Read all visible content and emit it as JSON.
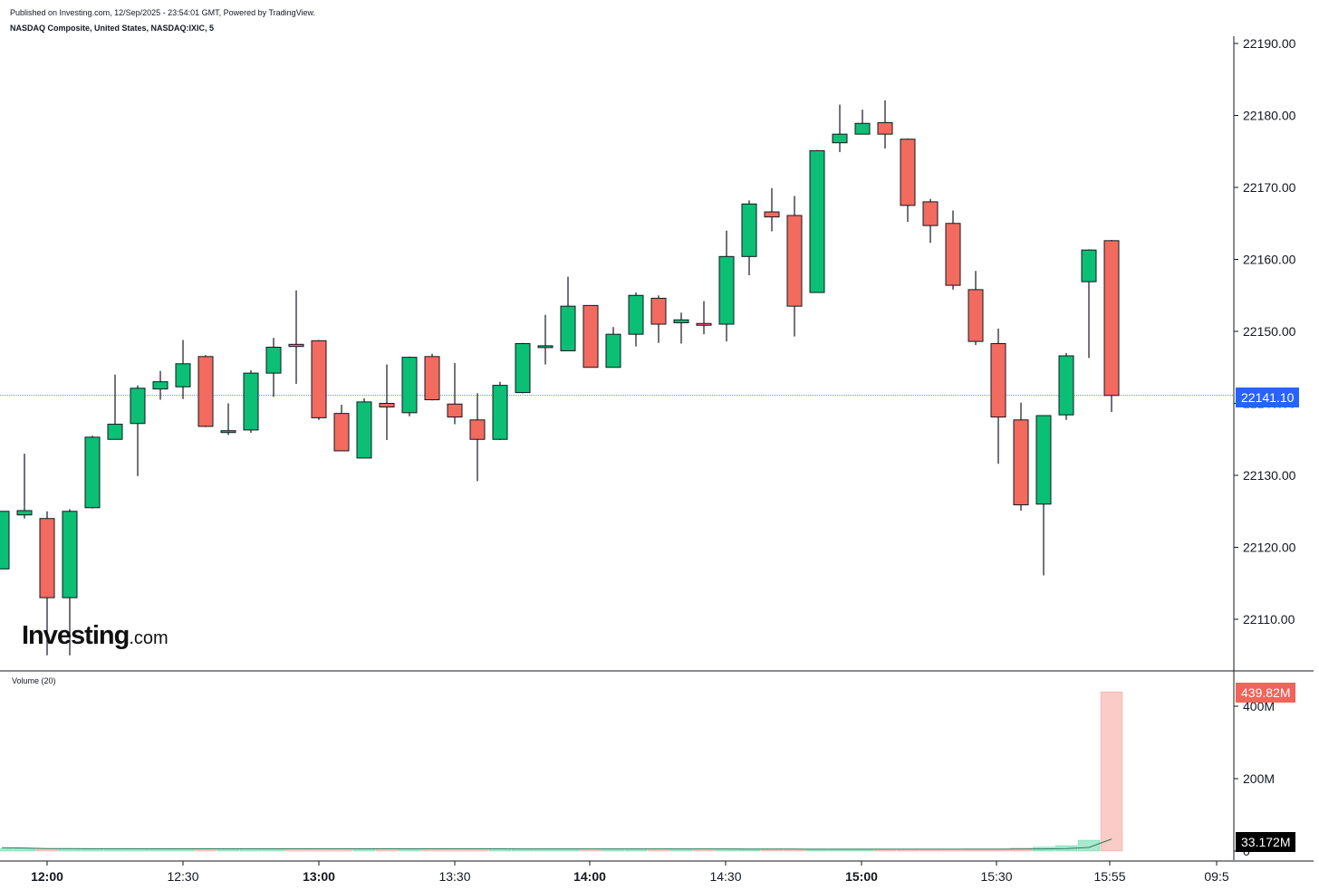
{
  "header": {
    "published": "Published on Investing.com, 12/Sep/2025 - 23:54:01 GMT, Powered by TradingView.",
    "symbol": "NASDAQ Composite, United States, NASDAQ:IXIC, 5"
  },
  "logo": {
    "main": "Investing",
    "suffix": ".com"
  },
  "volume_label": "Volume (20)",
  "badges": {
    "last_price": "22141.10",
    "last_volume": "439.82M",
    "volume_ma": "33.172M"
  },
  "colors": {
    "up": "#089981",
    "up_fill": "#0bbf75",
    "down_fill": "#f26b5e",
    "line": "#2962ff"
  },
  "chart_data": {
    "type": "candlestick",
    "interval": "5",
    "price_axis": {
      "ticks": [
        22110,
        22120,
        22130,
        22140,
        22150,
        22160,
        22170,
        22180,
        22190
      ],
      "labels": [
        "22110.00",
        "22120.00",
        "22130.00",
        "22140.00",
        "22150.00",
        "22160.00",
        "22170.00",
        "22180.00",
        "22190.00"
      ],
      "range": [
        22102,
        22191
      ]
    },
    "volume_axis": {
      "ticks": [
        0,
        200000000,
        400000000
      ],
      "labels": [
        "0",
        "200M",
        "400M"
      ],
      "range": [
        0,
        470000000
      ]
    },
    "time_axis": {
      "ticks": [
        "12:00",
        "12:30",
        "13:00",
        "13:30",
        "14:00",
        "14:30",
        "15:00",
        "15:30",
        "15:55",
        "09:5"
      ],
      "bold": [
        "12:00",
        "13:00",
        "14:00",
        "15:00"
      ]
    },
    "last_price": 22141.1,
    "candles": [
      {
        "t": "11:55",
        "o": 22117,
        "h": 22125,
        "l": 22117,
        "c": 22125
      },
      {
        "t": "12:00",
        "o": 22124.5,
        "h": 22133,
        "l": 22124,
        "c": 22125.1
      },
      {
        "t": "12:05",
        "o": 22124,
        "h": 22125,
        "l": 22105,
        "c": 22113
      },
      {
        "t": "12:10",
        "o": 22113,
        "h": 22125.3,
        "l": 22105,
        "c": 22125
      },
      {
        "t": "12:15",
        "o": 22125.5,
        "h": 22135.5,
        "l": 22125.4,
        "c": 22135.3
      },
      {
        "t": "12:20",
        "o": 22135,
        "h": 22144,
        "l": 22135,
        "c": 22137.1
      },
      {
        "t": "12:25",
        "o": 22137.2,
        "h": 22142.5,
        "l": 22129.9,
        "c": 22142.1
      },
      {
        "t": "12:30",
        "o": 22142,
        "h": 22144.5,
        "l": 22140.5,
        "c": 22143
      },
      {
        "t": "12:35",
        "o": 22142.3,
        "h": 22148.8,
        "l": 22140.6,
        "c": 22145.5
      },
      {
        "t": "12:40",
        "o": 22146.5,
        "h": 22146.7,
        "l": 22136.7,
        "c": 22136.8
      },
      {
        "t": "12:45",
        "o": 22136.1,
        "h": 22140,
        "l": 22135.6,
        "c": 22136.2
      },
      {
        "t": "12:50",
        "o": 22136.3,
        "h": 22144.6,
        "l": 22135.9,
        "c": 22144.2
      },
      {
        "t": "12:55",
        "o": 22144.2,
        "h": 22149.1,
        "l": 22140.9,
        "c": 22147.8
      },
      {
        "t": "13:00",
        "o": 22148.2,
        "h": 22155.7,
        "l": 22142.7,
        "c": 22147.9
      },
      {
        "t": "13:05",
        "o": 22148.7,
        "h": 22148.8,
        "l": 22137.7,
        "c": 22138
      },
      {
        "t": "13:10",
        "o": 22138.6,
        "h": 22139.8,
        "l": 22133.5,
        "c": 22133.4
      },
      {
        "t": "13:15",
        "o": 22132.4,
        "h": 22140.7,
        "l": 22132.4,
        "c": 22140.2
      },
      {
        "t": "13:20",
        "o": 22140,
        "h": 22145.4,
        "l": 22134.9,
        "c": 22139.5
      },
      {
        "t": "13:25",
        "o": 22138.7,
        "h": 22146.5,
        "l": 22138.2,
        "c": 22146.4
      },
      {
        "t": "13:30",
        "o": 22146.5,
        "h": 22146.9,
        "l": 22140.4,
        "c": 22140.5
      },
      {
        "t": "13:35",
        "o": 22139.9,
        "h": 22145.6,
        "l": 22137.1,
        "c": 22138.1
      },
      {
        "t": "13:40",
        "o": 22137.7,
        "h": 22141.4,
        "l": 22129.2,
        "c": 22135
      },
      {
        "t": "13:45",
        "o": 22135,
        "h": 22143,
        "l": 22134.9,
        "c": 22142.5
      },
      {
        "t": "13:50",
        "o": 22141.5,
        "h": 22148.4,
        "l": 22141.4,
        "c": 22148.3
      },
      {
        "t": "13:55",
        "o": 22148,
        "h": 22152.3,
        "l": 22145.4,
        "c": 22148
      },
      {
        "t": "14:00",
        "o": 22147.3,
        "h": 22157.6,
        "l": 22147.3,
        "c": 22153.5
      },
      {
        "t": "14:05",
        "o": 22153.6,
        "h": 22153.6,
        "l": 22145,
        "c": 22145
      },
      {
        "t": "14:10",
        "o": 22145,
        "h": 22150.6,
        "l": 22145,
        "c": 22149.6
      },
      {
        "t": "14:15",
        "o": 22149.6,
        "h": 22155.4,
        "l": 22147.9,
        "c": 22155
      },
      {
        "t": "14:20",
        "o": 22154.6,
        "h": 22155,
        "l": 22148.4,
        "c": 22151
      },
      {
        "t": "14:25",
        "o": 22151.2,
        "h": 22152.6,
        "l": 22148.3,
        "c": 22151.6
      },
      {
        "t": "14:30",
        "o": 22151.1,
        "h": 22154.2,
        "l": 22149.6,
        "c": 22150.9
      },
      {
        "t": "14:35",
        "o": 22151,
        "h": 22164,
        "l": 22148.6,
        "c": 22160.4
      },
      {
        "t": "14:40",
        "o": 22160.4,
        "h": 22168.2,
        "l": 22157.8,
        "c": 22167.7
      },
      {
        "t": "14:45",
        "o": 22166.6,
        "h": 22169.9,
        "l": 22163.9,
        "c": 22165.9
      },
      {
        "t": "14:50",
        "o": 22166.1,
        "h": 22168.8,
        "l": 22149.3,
        "c": 22153.5
      },
      {
        "t": "14:55",
        "o": 22155.4,
        "h": 22175.2,
        "l": 22155.4,
        "c": 22175.1
      },
      {
        "t": "15:00",
        "o": 22176.2,
        "h": 22181.5,
        "l": 22174.9,
        "c": 22177.4
      },
      {
        "t": "15:05",
        "o": 22177.4,
        "h": 22180.8,
        "l": 22177.4,
        "c": 22178.9
      },
      {
        "t": "15:10",
        "o": 22179,
        "h": 22182.1,
        "l": 22175.4,
        "c": 22177.4
      },
      {
        "t": "15:15",
        "o": 22176.7,
        "h": 22176.8,
        "l": 22165.2,
        "c": 22167.5
      },
      {
        "t": "15:20",
        "o": 22168,
        "h": 22168.4,
        "l": 22162.3,
        "c": 22164.7
      },
      {
        "t": "15:25",
        "o": 22165,
        "h": 22166.8,
        "l": 22155.8,
        "c": 22156.4
      },
      {
        "t": "15:30",
        "o": 22155.8,
        "h": 22158.4,
        "l": 22148.1,
        "c": 22148.6
      },
      {
        "t": "15:35",
        "o": 22148.3,
        "h": 22150.4,
        "l": 22131.6,
        "c": 22138.1
      },
      {
        "t": "15:40",
        "o": 22137.7,
        "h": 22140.1,
        "l": 22125.1,
        "c": 22125.9
      },
      {
        "t": "15:45",
        "o": 22126,
        "h": 22138.3,
        "l": 22116.1,
        "c": 22138.3
      },
      {
        "t": "15:50",
        "o": 22138.4,
        "h": 22147,
        "l": 22137.7,
        "c": 22146.6
      },
      {
        "t": "15:55",
        "o": 22156.9,
        "h": 22161.4,
        "l": 22146.3,
        "c": 22161.3
      },
      {
        "t": "16:00",
        "o": 22162.6,
        "h": 22162.7,
        "l": 22138.8,
        "c": 22141.1
      }
    ],
    "volume": [
      {
        "t": "11:55",
        "v": 7000000,
        "dir": "up"
      },
      {
        "t": "12:00",
        "v": 6500000,
        "dir": "up"
      },
      {
        "t": "12:05",
        "v": 6500000,
        "dir": "down"
      },
      {
        "t": "12:10",
        "v": 6500000,
        "dir": "up"
      },
      {
        "t": "12:15",
        "v": 6500000,
        "dir": "up"
      },
      {
        "t": "12:20",
        "v": 6200000,
        "dir": "up"
      },
      {
        "t": "12:25",
        "v": 6200000,
        "dir": "up"
      },
      {
        "t": "12:30",
        "v": 5500000,
        "dir": "up"
      },
      {
        "t": "12:35",
        "v": 5500000,
        "dir": "up"
      },
      {
        "t": "12:40",
        "v": 5500000,
        "dir": "down"
      },
      {
        "t": "12:45",
        "v": 6000000,
        "dir": "up"
      },
      {
        "t": "12:50",
        "v": 6000000,
        "dir": "up"
      },
      {
        "t": "12:55",
        "v": 6000000,
        "dir": "up"
      },
      {
        "t": "13:00",
        "v": 6500000,
        "dir": "down"
      },
      {
        "t": "13:05",
        "v": 6500000,
        "dir": "down"
      },
      {
        "t": "13:10",
        "v": 6500000,
        "dir": "down"
      },
      {
        "t": "13:15",
        "v": 6500000,
        "dir": "up"
      },
      {
        "t": "13:20",
        "v": 6000000,
        "dir": "down"
      },
      {
        "t": "13:25",
        "v": 6000000,
        "dir": "up"
      },
      {
        "t": "13:30",
        "v": 6000000,
        "dir": "down"
      },
      {
        "t": "13:35",
        "v": 6000000,
        "dir": "down"
      },
      {
        "t": "13:40",
        "v": 6000000,
        "dir": "down"
      },
      {
        "t": "13:45",
        "v": 5800000,
        "dir": "up"
      },
      {
        "t": "13:50",
        "v": 5800000,
        "dir": "up"
      },
      {
        "t": "13:55",
        "v": 5800000,
        "dir": "up"
      },
      {
        "t": "14:00",
        "v": 5800000,
        "dir": "up"
      },
      {
        "t": "14:05",
        "v": 5800000,
        "dir": "down"
      },
      {
        "t": "14:10",
        "v": 5800000,
        "dir": "up"
      },
      {
        "t": "14:15",
        "v": 5800000,
        "dir": "up"
      },
      {
        "t": "14:20",
        "v": 5800000,
        "dir": "down"
      },
      {
        "t": "14:25",
        "v": 5500000,
        "dir": "up"
      },
      {
        "t": "14:30",
        "v": 5500000,
        "dir": "down"
      },
      {
        "t": "14:35",
        "v": 5500000,
        "dir": "up"
      },
      {
        "t": "14:40",
        "v": 4500000,
        "dir": "up"
      },
      {
        "t": "14:45",
        "v": 4500000,
        "dir": "down"
      },
      {
        "t": "14:50",
        "v": 4500000,
        "dir": "down"
      },
      {
        "t": "14:55",
        "v": 4500000,
        "dir": "up"
      },
      {
        "t": "15:00",
        "v": 4500000,
        "dir": "up"
      },
      {
        "t": "15:05",
        "v": 4500000,
        "dir": "up"
      },
      {
        "t": "15:10",
        "v": 4500000,
        "dir": "down"
      },
      {
        "t": "15:15",
        "v": 5000000,
        "dir": "down"
      },
      {
        "t": "15:20",
        "v": 5000000,
        "dir": "down"
      },
      {
        "t": "15:25",
        "v": 5500000,
        "dir": "down"
      },
      {
        "t": "15:30",
        "v": 6000000,
        "dir": "down"
      },
      {
        "t": "15:35",
        "v": 6000000,
        "dir": "down"
      },
      {
        "t": "15:40",
        "v": 8000000,
        "dir": "down"
      },
      {
        "t": "15:45",
        "v": 11000000,
        "dir": "up"
      },
      {
        "t": "15:50",
        "v": 15000000,
        "dir": "up"
      },
      {
        "t": "15:55",
        "v": 30000000,
        "dir": "up"
      },
      {
        "t": "16:00",
        "v": 439820000,
        "dir": "down"
      }
    ],
    "volume_ma": {
      "name": "Volume (20)",
      "last": 33172000,
      "values": [
        9500000,
        8500000,
        7000000,
        6800000,
        6700000,
        6600000,
        6500000,
        6400000,
        6300000,
        6200000,
        6200000,
        6200000,
        6200000,
        6200000,
        6200000,
        6200000,
        6200000,
        6200000,
        6150000,
        6100000,
        6100000,
        6100000,
        6100000,
        6000000,
        6000000,
        6000000,
        5900000,
        5900000,
        5900000,
        5900000,
        5850000,
        5800000,
        5800000,
        5700000,
        5600000,
        5500000,
        5400000,
        5400000,
        5300000,
        5300000,
        5250000,
        5250000,
        5250000,
        5300000,
        5400000,
        5500000,
        6000000,
        7000000,
        10000000,
        33172000
      ]
    }
  }
}
